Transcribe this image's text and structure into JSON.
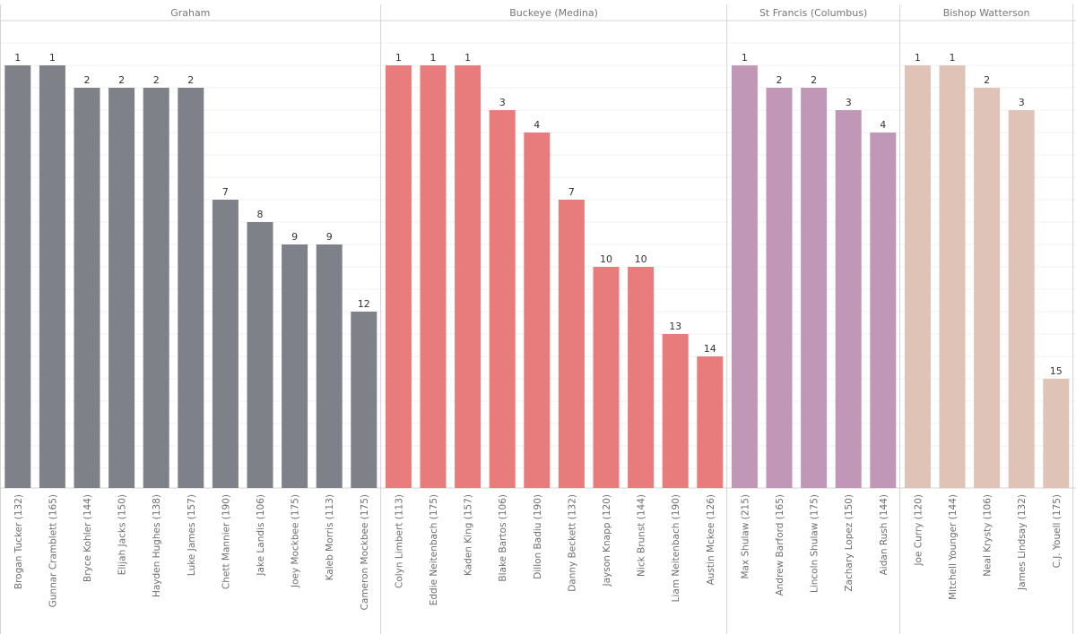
{
  "chart_data": {
    "type": "bar",
    "value_axis": {
      "reversed": true,
      "range": [
        0,
        19.9
      ],
      "grid": true,
      "tick_labels_shown": false
    },
    "colors": {
      "Graham": "#7f8189",
      "Buckeye (Medina)": "#e87b7b",
      "St Francis (Columbus)": "#c197b7",
      "Bishop Watterson": "#dfc3b7"
    },
    "panels": [
      {
        "name": "Graham",
        "categories": [
          "Brogan Tucker (132)",
          "Gunnar Cramblett (165)",
          "Bryce Kohler (144)",
          "Elijah Jacks (150)",
          "Hayden Hughes (138)",
          "Luke James (157)",
          "Chett Mannier (190)",
          "Jake Landis (106)",
          "Joey Mockbee (175)",
          "Kaleb Morris (113)",
          "Cameron Mockbee (175)"
        ],
        "values": [
          1,
          1,
          2,
          2,
          2,
          2,
          7,
          8,
          9,
          9,
          12
        ]
      },
      {
        "name": "Buckeye (Medina)",
        "categories": [
          "Colyn Limbert (113)",
          "Eddie Neitenbach (175)",
          "Kaden King (157)",
          "Blake Bartos (106)",
          "Dillon Badiu (190)",
          "Danny Beckett (132)",
          "Jayson Knapp (120)",
          "Nick Brunst (144)",
          "Liam Neitenbach (190)",
          "Austin Mckee (126)"
        ],
        "values": [
          1,
          1,
          1,
          3,
          4,
          7,
          10,
          10,
          13,
          14
        ]
      },
      {
        "name": "St Francis (Columbus)",
        "categories": [
          "Max Shulaw (215)",
          "Andrew Barford (165)",
          "Lincoln Shulaw (175)",
          "Zachary Lopez (150)",
          "Aidan Rush (144)"
        ],
        "values": [
          1,
          2,
          2,
          3,
          4
        ]
      },
      {
        "name": "Bishop Watterson",
        "categories": [
          "Joe Curry (120)",
          "Mitchell Younger (144)",
          "Neal Krysty (106)",
          "James Lindsay (132)",
          "C.J. Youell (175)"
        ],
        "values": [
          1,
          1,
          2,
          3,
          15
        ]
      }
    ]
  }
}
